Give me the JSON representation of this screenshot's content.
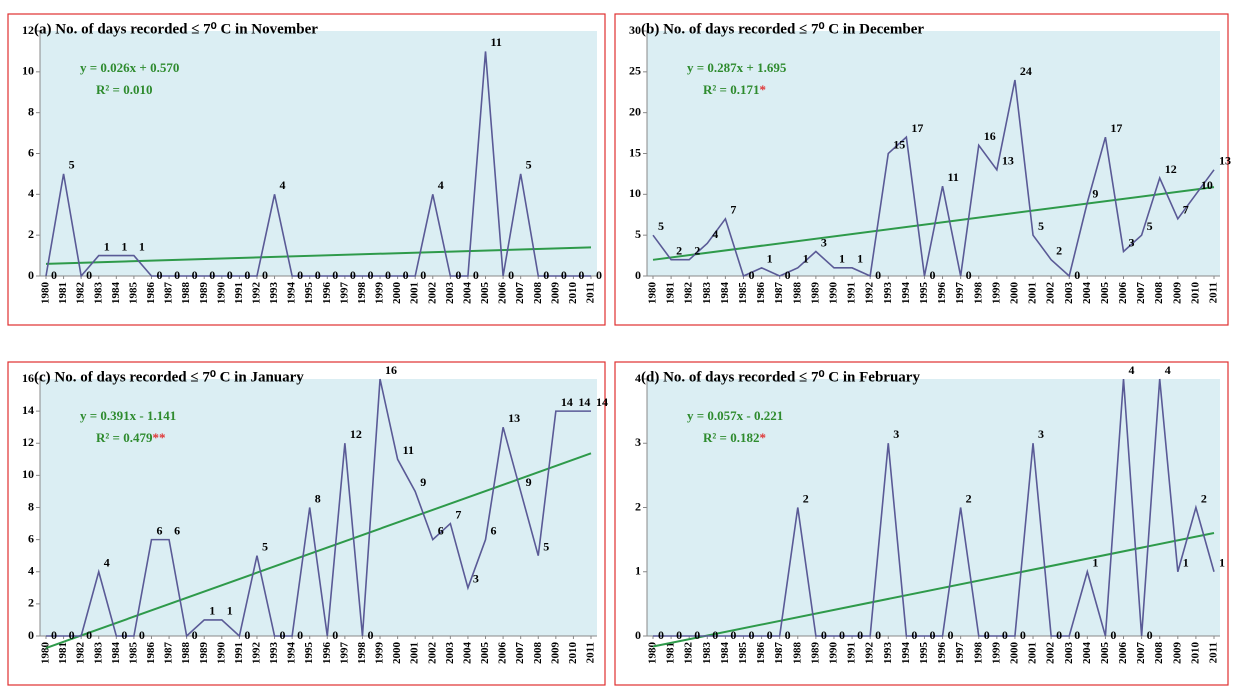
{
  "chart_data": [
    {
      "type": "line",
      "title": "(a) No. of days recorded ≤ 7⁰ C in November",
      "categories": [
        "1980",
        "1981",
        "1982",
        "1983",
        "1984",
        "1985",
        "1986",
        "1987",
        "1988",
        "1989",
        "1990",
        "1991",
        "1992",
        "1993",
        "1994",
        "1995",
        "1996",
        "1997",
        "1998",
        "1999",
        "2000",
        "2001",
        "2002",
        "2003",
        "2004",
        "2005",
        "2006",
        "2007",
        "2008",
        "2009",
        "2010",
        "2011"
      ],
      "values": [
        0,
        5,
        0,
        1,
        1,
        1,
        0,
        0,
        0,
        0,
        0,
        0,
        0,
        4,
        0,
        0,
        0,
        0,
        0,
        0,
        0,
        0,
        4,
        0,
        0,
        11,
        0,
        5,
        0,
        0,
        0,
        0
      ],
      "color": "#5a5a96",
      "ylim": [
        0,
        12
      ],
      "yticks": [
        0,
        2,
        4,
        6,
        8,
        10,
        12
      ],
      "trend": {
        "equation": "y = 0.026x + 0.570",
        "r_squared": "R² = 0.010",
        "slope": 0.026,
        "intercept": 0.57,
        "color": "#2e9a4a"
      }
    },
    {
      "type": "line",
      "title": "(b) No. of days recorded ≤ 7⁰ C in December",
      "categories": [
        "1980",
        "1981",
        "1982",
        "1983",
        "1984",
        "1985",
        "1986",
        "1987",
        "1988",
        "1989",
        "1990",
        "1991",
        "1992",
        "1993",
        "1994",
        "1995",
        "1996",
        "1997",
        "1998",
        "1999",
        "2000",
        "2001",
        "2002",
        "2003",
        "2004",
        "2005",
        "2006",
        "2007",
        "2008",
        "2009",
        "2010",
        "2011"
      ],
      "values": [
        5,
        2,
        2,
        4,
        7,
        0,
        1,
        0,
        1,
        3,
        1,
        1,
        0,
        15,
        17,
        0,
        11,
        0,
        16,
        13,
        24,
        5,
        2,
        0,
        9,
        17,
        3,
        5,
        12,
        7,
        10,
        13
      ],
      "color": "#5a5a96",
      "ylim": [
        0,
        30
      ],
      "yticks": [
        0,
        5,
        10,
        15,
        20,
        25,
        30
      ],
      "trend": {
        "equation": "y = 0.287x + 1.695",
        "r_squared": "R² = 0.171",
        "significance": "*",
        "slope": 0.287,
        "intercept": 1.695,
        "color": "#2e9a4a"
      }
    },
    {
      "type": "line",
      "title": "(c) No. of days recorded ≤ 7⁰ C in January",
      "categories": [
        "1980",
        "1981",
        "1982",
        "1983",
        "1984",
        "1985",
        "1986",
        "1987",
        "1988",
        "1989",
        "1990",
        "1991",
        "1992",
        "1993",
        "1994",
        "1995",
        "1996",
        "1997",
        "1998",
        "1999",
        "2000",
        "2001",
        "2002",
        "2003",
        "2004",
        "2005",
        "2006",
        "2007",
        "2008",
        "2009",
        "2010",
        "2011"
      ],
      "values": [
        0,
        0,
        0,
        4,
        0,
        0,
        6,
        6,
        0,
        1,
        1,
        0,
        5,
        0,
        0,
        8,
        0,
        12,
        0,
        16,
        11,
        9,
        6,
        7,
        3,
        6,
        13,
        9,
        5,
        14,
        14,
        14
      ],
      "color": "#5a5a96",
      "ylim": [
        0,
        16
      ],
      "yticks": [
        0,
        2,
        4,
        6,
        8,
        10,
        12,
        14,
        16
      ],
      "trend": {
        "equation": "y = 0.391x - 1.141",
        "r_squared": "R² = 0.479",
        "significance": "**",
        "slope": 0.391,
        "intercept": -1.141,
        "color": "#2e9a4a"
      }
    },
    {
      "type": "line",
      "title": "(d) No. of days recorded ≤ 7⁰ C in February",
      "categories": [
        "1980",
        "1981",
        "1982",
        "1983",
        "1984",
        "1985",
        "1986",
        "1987",
        "1988",
        "1989",
        "1990",
        "1991",
        "1992",
        "1993",
        "1994",
        "1995",
        "1996",
        "1997",
        "1998",
        "1999",
        "2000",
        "2001",
        "2002",
        "2003",
        "2004",
        "2005",
        "2006",
        "2007",
        "2008",
        "2009",
        "2010",
        "2011"
      ],
      "values": [
        0,
        0,
        0,
        0,
        0,
        0,
        0,
        0,
        2,
        0,
        0,
        0,
        0,
        3,
        0,
        0,
        0,
        2,
        0,
        0,
        0,
        3,
        0,
        0,
        1,
        0,
        4,
        0,
        4,
        1,
        2,
        1
      ],
      "color": "#5a5a96",
      "ylim": [
        0,
        4
      ],
      "yticks": [
        0,
        1,
        2,
        3,
        4
      ],
      "trend": {
        "equation": "y = 0.057x - 0.221",
        "r_squared": "R² = 0.182",
        "significance": "*",
        "slope": 0.057,
        "intercept": -0.221,
        "color": "#2e9a4a"
      }
    }
  ]
}
